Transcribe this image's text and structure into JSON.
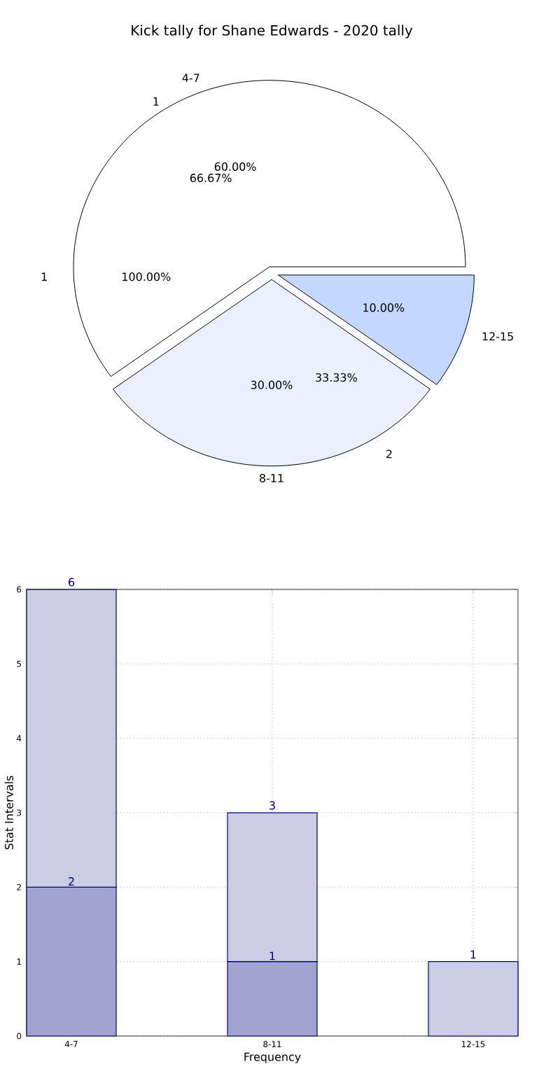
{
  "chart_data": [
    {
      "type": "pie",
      "title": "Kick tally for Shane Edwards - 2020 tally",
      "categories": [
        "4-7",
        "8-11",
        "12-15"
      ],
      "values": [
        60,
        30,
        10
      ],
      "colors": [
        "#ffffff",
        "#eaf0ff",
        "#c4d7ff"
      ],
      "value_labels": [
        "60.00%",
        "30.00%",
        "10.00%"
      ],
      "annotations": [
        "1",
        "1",
        "2",
        "66.67%",
        "33.33%",
        "100.00%"
      ]
    },
    {
      "type": "bar",
      "stacked": true,
      "categories": [
        "4-7",
        "8-11",
        "12-15"
      ],
      "series": [
        {
          "color": "#a3a3d1",
          "values": [
            2,
            1,
            0
          ],
          "value_labels": [
            "2",
            "1",
            null
          ]
        },
        {
          "color": "#ccccE4",
          "values": [
            4,
            2,
            1
          ]
        }
      ],
      "totals": [
        "6",
        "3",
        "1"
      ],
      "xlabel": "Frequency",
      "ylabel": "Stat Intervals",
      "ylim": [
        0,
        6
      ],
      "yticks": [
        0,
        1,
        2,
        3,
        4,
        5,
        6
      ],
      "grid": true
    }
  ]
}
